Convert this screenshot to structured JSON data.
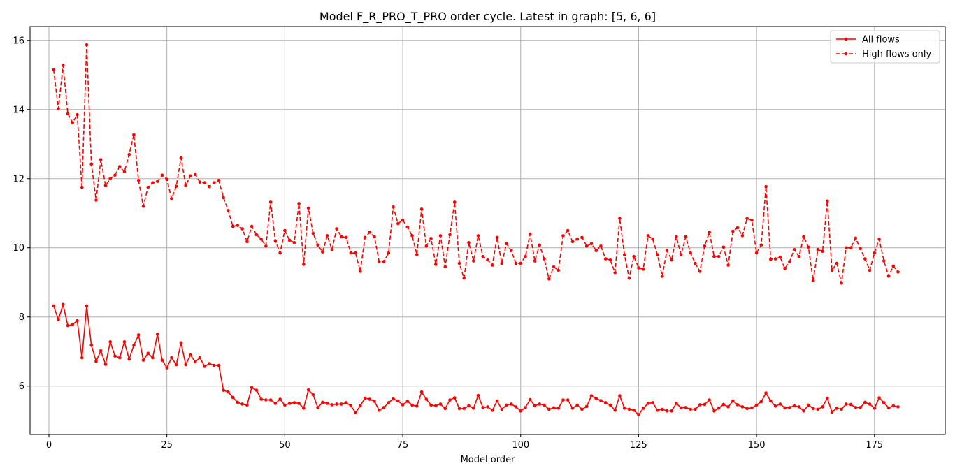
{
  "chart_data": {
    "type": "line",
    "title": "Model F_R_PRO_T_PRO order cycle. Latest in graph: [5, 6, 6]",
    "xlabel": "Model order",
    "ylabel": "",
    "xlim": [
      -4,
      190
    ],
    "ylim": [
      4.6,
      16.4
    ],
    "xticks": [
      0,
      25,
      50,
      75,
      100,
      125,
      150,
      175
    ],
    "yticks": [
      6,
      8,
      10,
      12,
      14,
      16
    ],
    "xtick_labels": [
      "0",
      "25",
      "50",
      "75",
      "100",
      "125",
      "150",
      "175"
    ],
    "ytick_labels": [
      "6",
      "8",
      "10",
      "12",
      "14",
      "16"
    ],
    "grid": true,
    "legend_position": "top-right",
    "series": [
      {
        "name": "All flows",
        "color": "#ff0000",
        "linestyle": "solid",
        "marker": "circle",
        "x_start": 1,
        "values": [
          8.32,
          7.92,
          8.36,
          7.75,
          7.78,
          7.89,
          6.82,
          8.32,
          7.18,
          6.72,
          7.02,
          6.63,
          7.28,
          6.87,
          6.82,
          7.28,
          6.78,
          7.18,
          7.48,
          6.75,
          6.95,
          6.82,
          7.5,
          6.75,
          6.53,
          6.82,
          6.62,
          7.25,
          6.62,
          6.9,
          6.7,
          6.82,
          6.57,
          6.65,
          6.6,
          6.6,
          5.88,
          5.83,
          5.67,
          5.53,
          5.48,
          5.45,
          5.96,
          5.88,
          5.62,
          5.6,
          5.6,
          5.5,
          5.62,
          5.45,
          5.5,
          5.52,
          5.5,
          5.36,
          5.89,
          5.75,
          5.38,
          5.53,
          5.5,
          5.46,
          5.48,
          5.48,
          5.52,
          5.43,
          5.23,
          5.43,
          5.65,
          5.62,
          5.56,
          5.3,
          5.38,
          5.52,
          5.63,
          5.57,
          5.46,
          5.56,
          5.45,
          5.42,
          5.83,
          5.62,
          5.45,
          5.43,
          5.48,
          5.35,
          5.6,
          5.66,
          5.35,
          5.35,
          5.43,
          5.36,
          5.73,
          5.38,
          5.4,
          5.3,
          5.57,
          5.33,
          5.45,
          5.48,
          5.4,
          5.28,
          5.38,
          5.61,
          5.43,
          5.48,
          5.45,
          5.33,
          5.37,
          5.36,
          5.6,
          5.6,
          5.36,
          5.45,
          5.33,
          5.41,
          5.72,
          5.64,
          5.58,
          5.52,
          5.45,
          5.3,
          5.72,
          5.36,
          5.33,
          5.3,
          5.17,
          5.36,
          5.5,
          5.52,
          5.3,
          5.33,
          5.28,
          5.28,
          5.5,
          5.37,
          5.38,
          5.33,
          5.33,
          5.46,
          5.47,
          5.6,
          5.28,
          5.36,
          5.47,
          5.4,
          5.57,
          5.46,
          5.4,
          5.35,
          5.37,
          5.45,
          5.55,
          5.8,
          5.57,
          5.42,
          5.48,
          5.37,
          5.38,
          5.43,
          5.4,
          5.28,
          5.45,
          5.35,
          5.33,
          5.4,
          5.65,
          5.25,
          5.36,
          5.33,
          5.48,
          5.47,
          5.38,
          5.38,
          5.53,
          5.48,
          5.36,
          5.66,
          5.52,
          5.37,
          5.43,
          5.4
        ]
      },
      {
        "name": "High flows only",
        "color": "#ff0000",
        "linestyle": "dashed",
        "marker": "circle",
        "x_start": 1,
        "values": [
          15.15,
          14.02,
          15.28,
          13.88,
          13.62,
          13.85,
          11.75,
          15.87,
          12.42,
          11.38,
          12.55,
          11.8,
          12.0,
          12.1,
          12.35,
          12.2,
          12.7,
          13.27,
          11.95,
          11.2,
          11.75,
          11.88,
          11.92,
          12.1,
          11.98,
          11.42,
          11.78,
          12.6,
          11.8,
          12.08,
          12.12,
          11.9,
          11.88,
          11.77,
          11.88,
          11.95,
          11.45,
          11.08,
          10.62,
          10.65,
          10.55,
          10.18,
          10.62,
          10.38,
          10.25,
          10.05,
          11.32,
          10.2,
          9.85,
          10.5,
          10.22,
          10.15,
          11.28,
          9.52,
          11.15,
          10.42,
          10.08,
          9.88,
          10.35,
          9.95,
          10.55,
          10.32,
          10.3,
          9.85,
          9.85,
          9.32,
          10.3,
          10.45,
          10.32,
          9.6,
          9.6,
          9.85,
          11.18,
          10.7,
          10.8,
          10.6,
          10.35,
          9.8,
          11.12,
          10.05,
          10.27,
          9.52,
          10.35,
          9.45,
          10.38,
          11.32,
          9.55,
          9.12,
          10.15,
          9.62,
          10.35,
          9.75,
          9.65,
          9.5,
          10.3,
          9.55,
          10.12,
          9.92,
          9.55,
          9.55,
          9.75,
          10.4,
          9.62,
          10.08,
          9.68,
          9.1,
          9.45,
          9.35,
          10.35,
          10.5,
          10.18,
          10.25,
          10.3,
          10.05,
          10.12,
          9.92,
          10.05,
          9.68,
          9.65,
          9.28,
          10.85,
          9.8,
          9.12,
          9.75,
          9.42,
          9.38,
          10.35,
          10.25,
          9.8,
          9.18,
          9.92,
          9.65,
          10.32,
          9.8,
          10.32,
          9.85,
          9.55,
          9.32,
          10.05,
          10.45,
          9.75,
          9.75,
          10.02,
          9.5,
          10.48,
          10.58,
          10.35,
          10.85,
          10.8,
          9.85,
          10.08,
          11.77,
          9.67,
          9.68,
          9.73,
          9.4,
          9.6,
          9.95,
          9.75,
          10.32,
          10.02,
          9.05,
          9.95,
          9.9,
          11.35,
          9.35,
          9.55,
          8.98,
          10.0,
          10.0,
          10.28,
          9.98,
          9.68,
          9.35,
          9.85,
          10.25,
          9.62,
          9.18,
          9.47,
          9.3
        ]
      }
    ]
  }
}
